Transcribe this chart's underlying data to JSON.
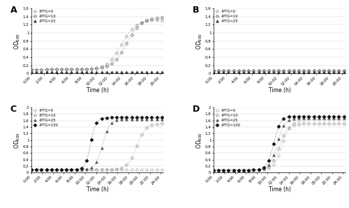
{
  "panel_A": {
    "label": "A",
    "ylim": [
      0,
      1.6
    ],
    "yticks": [
      0,
      0.2,
      0.4,
      0.6,
      0.8,
      1.0,
      1.2,
      1.4,
      1.6
    ],
    "xlim": [
      0,
      20.5
    ],
    "xtick_vals": [
      0,
      2,
      4,
      6,
      8,
      10,
      12,
      14,
      16,
      18,
      20
    ],
    "xtick_labels": [
      "0:00",
      "2:00",
      "4:00",
      "6:00",
      "8:00",
      "10:00",
      "12:00",
      "14:00",
      "16:00",
      "18:00",
      "20:00"
    ],
    "series": [
      {
        "label": "·IPTG=0",
        "marker": "o",
        "color": "#888888",
        "markersize": 2.5,
        "flat_val": 0.1,
        "sigmoid_max": 1.22,
        "sigmoid_mid": 14.0,
        "sigmoid_k": 0.9,
        "mfc": "none"
      },
      {
        "label": "·IPTG=10",
        "marker": "o",
        "color": "#555555",
        "markersize": 2.5,
        "flat_val": 0.1,
        "sigmoid_max": 1.28,
        "sigmoid_mid": 14.8,
        "sigmoid_k": 0.9,
        "mfc": "none"
      },
      {
        "label": "·IPTG=25",
        "marker": "^",
        "color": "#333333",
        "markersize": 2.5,
        "flat_val": 0.04,
        "sigmoid_max": 0.09,
        "sigmoid_mid": 99,
        "sigmoid_k": 0.9,
        "mfc": "#333333"
      }
    ]
  },
  "panel_B": {
    "label": "B",
    "ylim": [
      0,
      1.6
    ],
    "yticks": [
      0,
      0.2,
      0.4,
      0.6,
      0.8,
      1.0,
      1.2,
      1.4,
      1.6
    ],
    "xlim": [
      0,
      20.5
    ],
    "xtick_vals": [
      0,
      2,
      4,
      6,
      8,
      10,
      12,
      14,
      16,
      18,
      20
    ],
    "xtick_labels": [
      "0:00",
      "2:00",
      "4:00",
      "6:00",
      "8:00",
      "10:00",
      "12:00",
      "14:00",
      "16:00",
      "18:00",
      "20:00"
    ],
    "series": [
      {
        "label": "·IPTG=0",
        "marker": "o",
        "color": "#888888",
        "markersize": 2.5,
        "flat_val": 0.08,
        "sigmoid_max": 0.0,
        "sigmoid_mid": 99,
        "sigmoid_k": 0.9,
        "mfc": "none"
      },
      {
        "label": "·IPTG=10",
        "marker": "o",
        "color": "#555555",
        "markersize": 2.5,
        "flat_val": 0.08,
        "sigmoid_max": 0.0,
        "sigmoid_mid": 99,
        "sigmoid_k": 0.9,
        "mfc": "none"
      },
      {
        "label": "·IPTG=25",
        "marker": "^",
        "color": "#333333",
        "markersize": 2.5,
        "flat_val": 0.04,
        "sigmoid_max": 0.0,
        "sigmoid_mid": 99,
        "sigmoid_k": 0.9,
        "mfc": "#333333"
      }
    ]
  },
  "panel_C": {
    "label": "C",
    "ylim": [
      0,
      2.0
    ],
    "yticks": [
      0,
      0.2,
      0.4,
      0.6,
      0.8,
      1.0,
      1.2,
      1.4,
      1.6,
      1.8,
      2.0
    ],
    "xlim": [
      0,
      24.5
    ],
    "xtick_vals": [
      0,
      2,
      4,
      6,
      8,
      10,
      12,
      14,
      16,
      18,
      20,
      22,
      24
    ],
    "xtick_labels": [
      "0:00",
      "2:00",
      "4:00",
      "6:00",
      "8:00",
      "10:00",
      "12:00",
      "14:00",
      "16:00",
      "18:00",
      "20:00",
      "22:00",
      "24:00"
    ],
    "series": [
      {
        "label": "·IPTG=0",
        "marker": "o",
        "color": "#aaaaaa",
        "markersize": 2.5,
        "flat_val": 0.09,
        "sigmoid_max": 0.08,
        "sigmoid_mid": 99,
        "sigmoid_k": 0.9,
        "mfc": "none"
      },
      {
        "label": "·IPTG=10",
        "marker": "o",
        "color": "#888888",
        "markersize": 2.5,
        "flat_val": 0.09,
        "sigmoid_max": 1.42,
        "sigmoid_mid": 19.5,
        "sigmoid_k": 1.2,
        "mfc": "none"
      },
      {
        "label": "·IPTG=25",
        "marker": "^",
        "color": "#555555",
        "markersize": 2.5,
        "flat_val": 0.09,
        "sigmoid_max": 1.55,
        "sigmoid_mid": 13.2,
        "sigmoid_k": 1.5,
        "mfc": "#555555"
      },
      {
        "label": "·IPTG=100",
        "marker": "D",
        "color": "#111111",
        "markersize": 2.5,
        "flat_val": 0.09,
        "sigmoid_max": 1.6,
        "sigmoid_mid": 11.0,
        "sigmoid_k": 2.0,
        "mfc": "#111111"
      }
    ]
  },
  "panel_D": {
    "label": "D",
    "ylim": [
      0,
      2.0
    ],
    "yticks": [
      0,
      0.2,
      0.4,
      0.6,
      0.8,
      1.0,
      1.2,
      1.4,
      1.6,
      1.8,
      2.0
    ],
    "xlim": [
      0,
      24.5
    ],
    "xtick_vals": [
      0,
      2,
      4,
      6,
      8,
      10,
      12,
      14,
      16,
      18,
      20,
      22,
      24
    ],
    "xtick_labels": [
      "0:00",
      "2:00",
      "4:00",
      "6:00",
      "8:00",
      "10:00",
      "12:00",
      "14:00",
      "16:00",
      "18:00",
      "20:00",
      "22:00",
      "24:00"
    ],
    "series": [
      {
        "label": "·IPTG=0",
        "marker": "o",
        "color": "#aaaaaa",
        "markersize": 2.5,
        "flat_val": 0.08,
        "sigmoid_max": 1.55,
        "sigmoid_mid": 12.8,
        "sigmoid_k": 1.3,
        "mfc": "none"
      },
      {
        "label": "·IPTG=10",
        "marker": "o",
        "color": "#888888",
        "markersize": 2.5,
        "flat_val": 0.08,
        "sigmoid_max": 1.42,
        "sigmoid_mid": 12.2,
        "sigmoid_k": 1.3,
        "mfc": "none"
      },
      {
        "label": "·IPTG=25",
        "marker": "^",
        "color": "#555555",
        "markersize": 2.5,
        "flat_val": 0.08,
        "sigmoid_max": 1.6,
        "sigmoid_mid": 11.8,
        "sigmoid_k": 1.4,
        "mfc": "#555555"
      },
      {
        "label": "·IPTG=100",
        "marker": "D",
        "color": "#111111",
        "markersize": 2.5,
        "flat_val": 0.08,
        "sigmoid_max": 1.65,
        "sigmoid_mid": 11.2,
        "sigmoid_k": 1.6,
        "mfc": "#111111"
      }
    ]
  }
}
